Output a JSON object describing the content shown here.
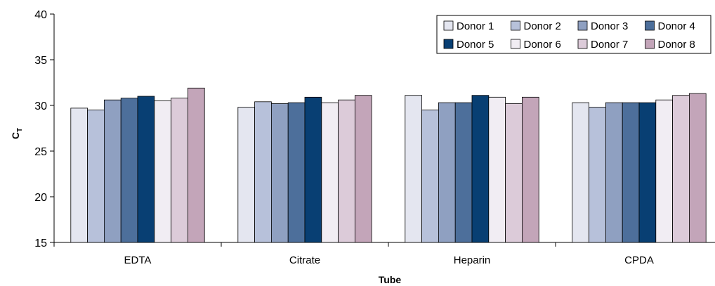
{
  "chart_data": {
    "type": "bar",
    "title": "",
    "xlabel": "Tube",
    "ylabel": "C",
    "ylabel_subscript": "T",
    "ylim": [
      15,
      40
    ],
    "yticks": [
      15,
      20,
      25,
      30,
      35,
      40
    ],
    "grid": false,
    "legend_position": "top-right",
    "categories": [
      "EDTA",
      "Citrate",
      "Heparin",
      "CPDA"
    ],
    "series": [
      {
        "name": "Donor 1",
        "color": "#e4e6f0",
        "values": [
          29.7,
          29.8,
          31.1,
          30.3
        ]
      },
      {
        "name": "Donor 2",
        "color": "#b7c1da",
        "values": [
          29.5,
          30.4,
          29.5,
          29.8
        ]
      },
      {
        "name": "Donor 3",
        "color": "#8fa0c1",
        "values": [
          30.6,
          30.2,
          30.3,
          30.3
        ]
      },
      {
        "name": "Donor 4",
        "color": "#4d6f9b",
        "values": [
          30.8,
          30.3,
          30.3,
          30.3
        ]
      },
      {
        "name": "Donor 5",
        "color": "#083f73",
        "values": [
          31.0,
          30.9,
          31.1,
          30.3
        ]
      },
      {
        "name": "Donor 6",
        "color": "#f1edf3",
        "values": [
          30.5,
          30.3,
          30.9,
          30.6
        ]
      },
      {
        "name": "Donor 7",
        "color": "#dccbd9",
        "values": [
          30.8,
          30.6,
          30.2,
          31.1
        ]
      },
      {
        "name": "Donor 8",
        "color": "#c3a5b9",
        "values": [
          31.9,
          31.1,
          30.9,
          31.3
        ]
      }
    ]
  }
}
